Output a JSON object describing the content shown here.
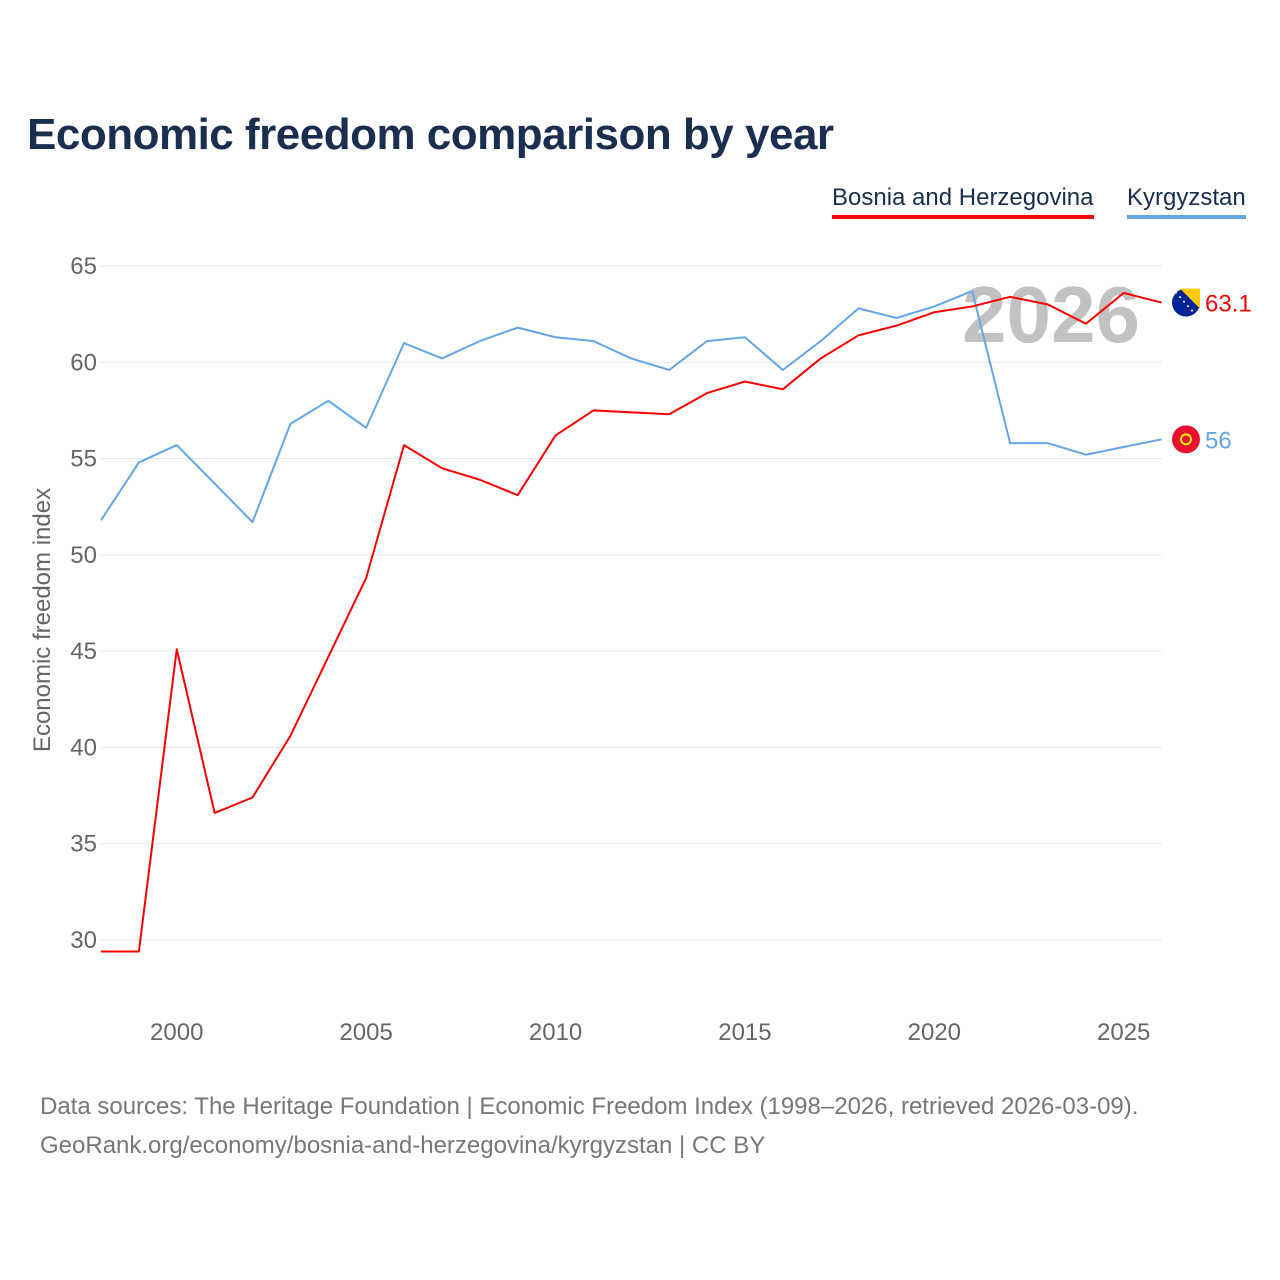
{
  "chart_data": {
    "type": "line",
    "title": "Economic freedom comparison by year",
    "xlabel": "",
    "ylabel": "Economic freedom index",
    "xlim": [
      1998,
      2026
    ],
    "ylim": [
      27,
      65
    ],
    "yticks": [
      30,
      35,
      40,
      45,
      50,
      55,
      60,
      65
    ],
    "xticks": [
      2000,
      2005,
      2010,
      2015,
      2020,
      2025
    ],
    "grid": true,
    "legend_placement": "top-right",
    "year_watermark": "2026",
    "x": [
      1998,
      1999,
      2000,
      2001,
      2002,
      2003,
      2004,
      2005,
      2006,
      2007,
      2008,
      2009,
      2010,
      2011,
      2012,
      2013,
      2014,
      2015,
      2016,
      2017,
      2018,
      2019,
      2020,
      2021,
      2022,
      2023,
      2024,
      2025,
      2026
    ],
    "series": [
      {
        "name": "Bosnia and Herzegovina",
        "color": "#ff0000",
        "end_label": "63.1",
        "values": [
          29.4,
          29.4,
          45.1,
          36.6,
          37.4,
          40.6,
          44.7,
          48.8,
          55.7,
          54.5,
          53.9,
          53.1,
          56.2,
          57.5,
          57.4,
          57.3,
          58.4,
          59.0,
          58.6,
          60.2,
          61.4,
          61.9,
          62.6,
          62.9,
          63.4,
          63.0,
          62.0,
          63.6,
          63.1
        ]
      },
      {
        "name": "Kyrgyzstan",
        "color": "#63a6ea",
        "end_label": "56",
        "values": [
          51.8,
          54.8,
          55.7,
          53.7,
          51.7,
          56.8,
          58.0,
          56.6,
          61.0,
          60.2,
          61.1,
          61.8,
          61.3,
          61.1,
          60.2,
          59.6,
          61.1,
          61.3,
          59.6,
          61.1,
          62.8,
          62.3,
          62.9,
          63.7,
          55.8,
          55.8,
          55.2,
          55.6,
          56.0
        ]
      }
    ]
  },
  "footer": {
    "source_line": "Data sources: The Heritage Foundation | Economic Freedom Index (1998–2026, retrieved 2026-03-09).",
    "url_line": "GeoRank.org/economy/bosnia-and-herzegovina/kyrgyzstan | CC BY"
  }
}
